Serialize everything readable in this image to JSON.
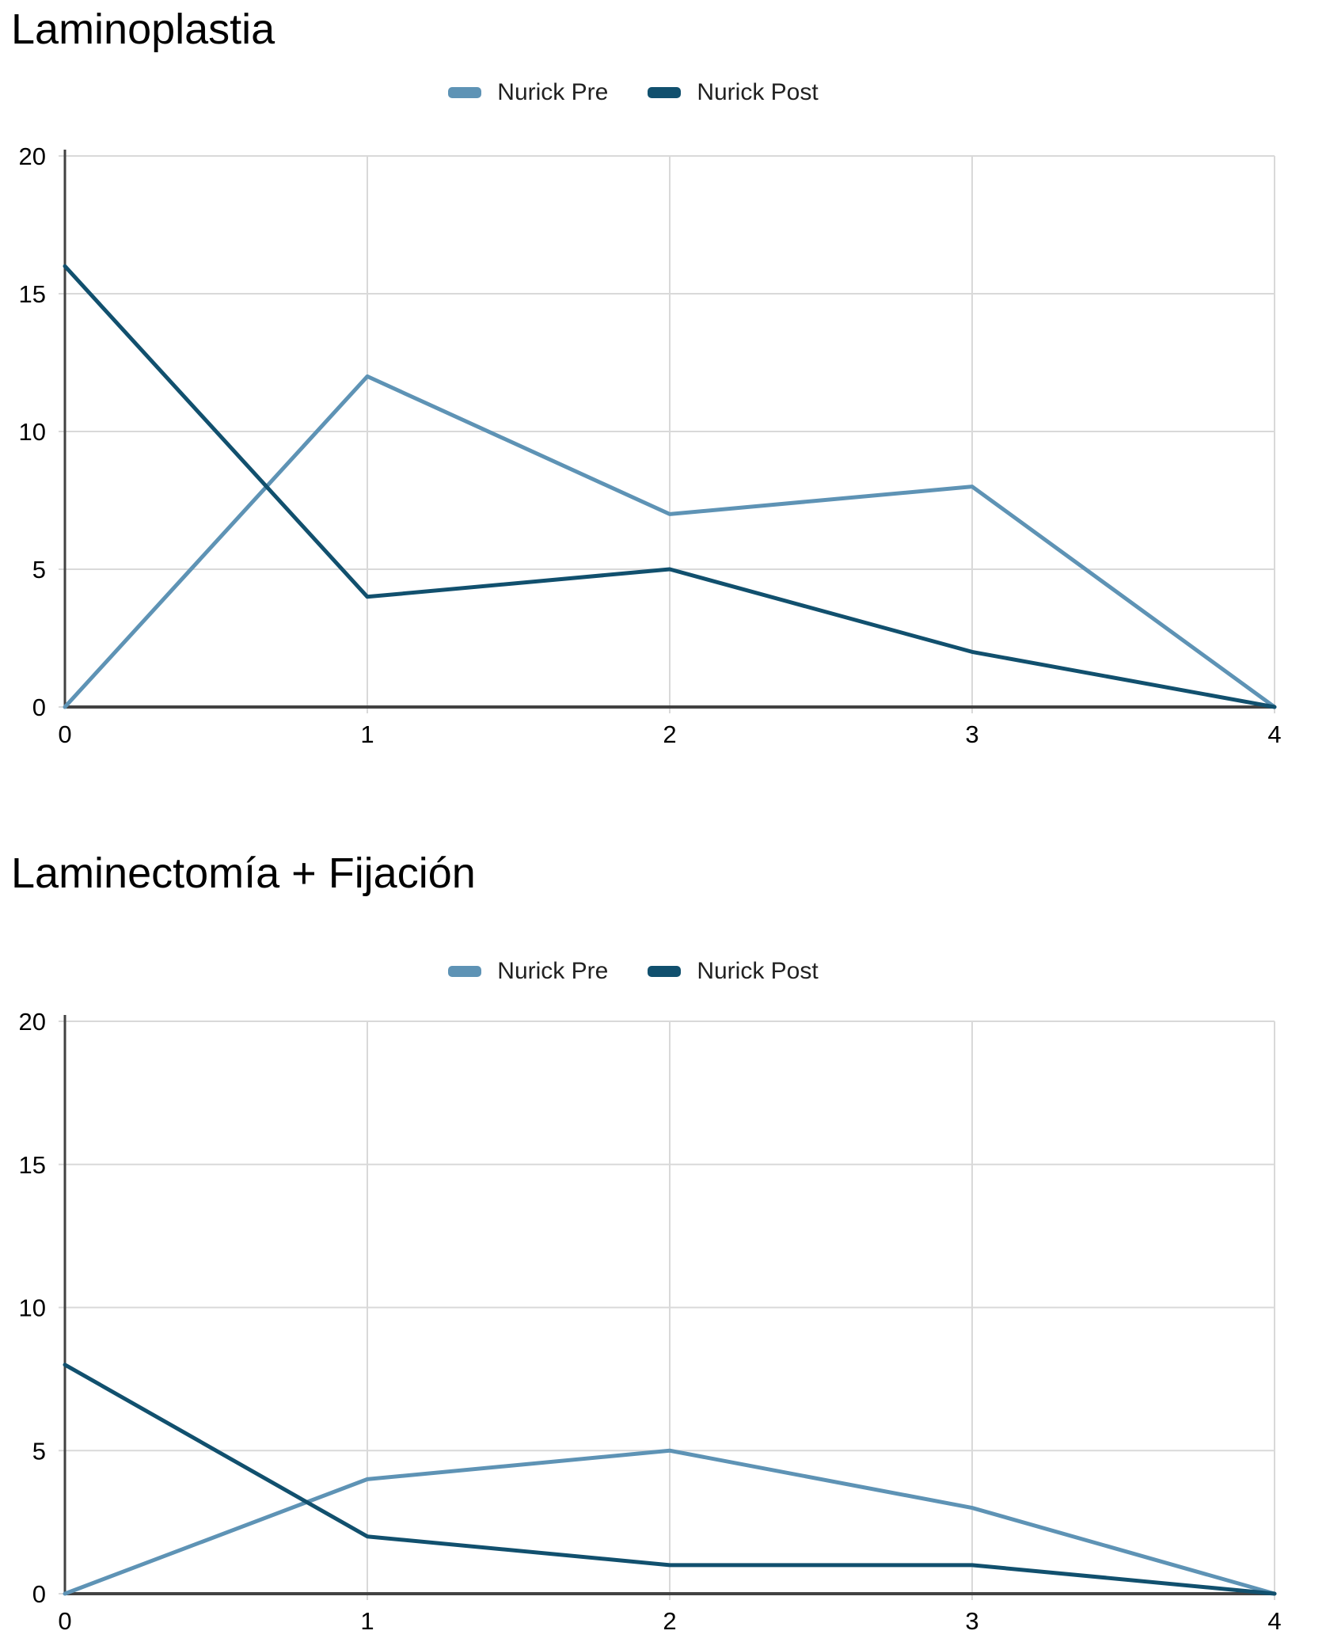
{
  "colors": {
    "grid": "#d9d9d9",
    "axis": "#424242",
    "tick_label": "#000000",
    "title": "#000000",
    "legend_label": "#212121",
    "background": "#ffffff"
  },
  "chart_data": [
    {
      "type": "line",
      "title": "Laminoplastia",
      "x": [
        0,
        1,
        2,
        3,
        4
      ],
      "series": [
        {
          "name": "Nurick Pre",
          "color": "#5e93b5",
          "values": [
            0,
            12,
            7,
            8,
            0
          ]
        },
        {
          "name": "Nurick Post",
          "color": "#11506e",
          "values": [
            16,
            4,
            5,
            2,
            0
          ]
        }
      ],
      "xlabel": "",
      "ylabel": "",
      "xlim": [
        0,
        4
      ],
      "ylim": [
        0,
        20
      ],
      "x_ticks": [
        0,
        1,
        2,
        3,
        4
      ],
      "y_ticks": [
        0,
        5,
        10,
        15,
        20
      ],
      "grid": true,
      "legend_position": "top"
    },
    {
      "type": "line",
      "title": "Laminectomía + Fijación",
      "x": [
        0,
        1,
        2,
        3,
        4
      ],
      "series": [
        {
          "name": "Nurick Pre",
          "color": "#5e93b5",
          "values": [
            0,
            4,
            5,
            3,
            0
          ]
        },
        {
          "name": "Nurick Post",
          "color": "#11506e",
          "values": [
            8,
            2,
            1,
            1,
            0
          ]
        }
      ],
      "xlabel": "",
      "ylabel": "",
      "xlim": [
        0,
        4
      ],
      "ylim": [
        0,
        20
      ],
      "x_ticks": [
        0,
        1,
        2,
        3,
        4
      ],
      "y_ticks": [
        0,
        5,
        10,
        15,
        20
      ],
      "grid": true,
      "legend_position": "top"
    }
  ]
}
